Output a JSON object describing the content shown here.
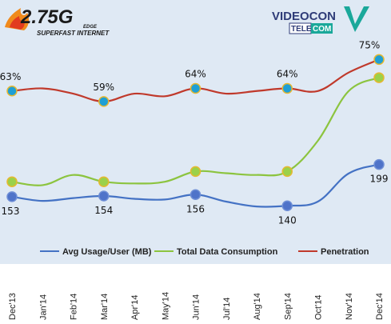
{
  "logos": {
    "left": {
      "main": "2.75G",
      "small": "EDGE",
      "tagline": "SUPERFAST INTERNET"
    },
    "right": {
      "word": "VIDEOCON",
      "tele": "TELE",
      "com": "COM"
    }
  },
  "colors": {
    "plot_bg": "#dfe9f4",
    "avg": "#4472c4",
    "total": "#8cc43f",
    "penetration": "#c0392b",
    "avg_marker": "#4f73c9",
    "total_marker": "#9bd14a",
    "pen_marker": "#1f9fd4",
    "marker_ring": "#e6b830"
  },
  "chart_data": {
    "type": "line",
    "categories": [
      "Dec'13",
      "Jan'14",
      "Feb'14",
      "Mar'14",
      "Apr'14",
      "May'14",
      "Jun'14",
      "Jul'14",
      "Aug'14",
      "Sep'14",
      "Oct'14",
      "Nov'14",
      "Dec'14"
    ],
    "series": [
      {
        "name": "Avg Usage/User (MB)",
        "key": "avg",
        "values": [
          153,
          147,
          151,
          154,
          150,
          149,
          156,
          146,
          139,
          140,
          146,
          186,
          199
        ],
        "marker_idx": [
          0,
          3,
          6,
          9,
          12
        ],
        "labels": [
          "153",
          "154",
          "156",
          "140",
          "199"
        ]
      },
      {
        "name": "Total Data Consumption",
        "key": "total",
        "values": [
          31,
          29,
          35,
          31,
          30,
          31,
          37,
          36,
          35,
          37,
          55,
          84,
          92
        ],
        "marker_idx": [
          0,
          3,
          6,
          9,
          12
        ]
      },
      {
        "name": "Penetration",
        "key": "penetration",
        "values": [
          63,
          64,
          62,
          59,
          62,
          61,
          64,
          62,
          63,
          64,
          63,
          70,
          75
        ],
        "marker_idx": [
          0,
          3,
          6,
          9,
          12
        ],
        "labels": [
          "63%",
          "59%",
          "64%",
          "64%",
          "75%"
        ]
      }
    ],
    "legend_position": "bottom",
    "grid": false
  }
}
